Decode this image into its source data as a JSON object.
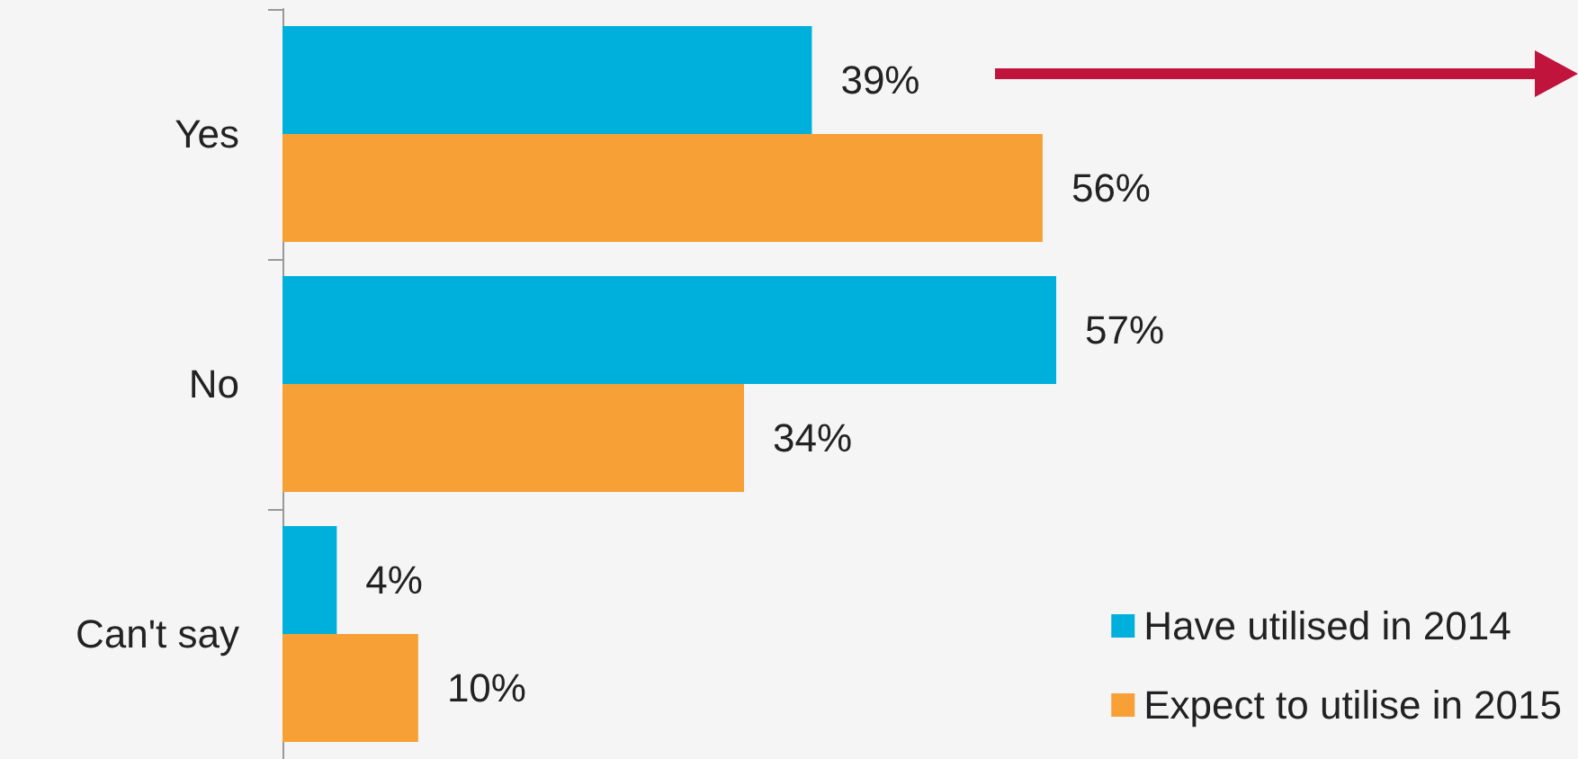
{
  "chart_data": {
    "type": "bar",
    "orientation": "horizontal",
    "categories": [
      "Yes",
      "No",
      "Can't say"
    ],
    "series": [
      {
        "name": "Have utilised in 2014",
        "color": "#00b0dc",
        "values": [
          39,
          57,
          4
        ],
        "value_labels": [
          "39%",
          "57%",
          "4%"
        ]
      },
      {
        "name": "Expect to utilise in 2015",
        "color": "#f7a035",
        "values": [
          56,
          34,
          10
        ],
        "value_labels": [
          "56%",
          "34%",
          "10%"
        ]
      }
    ],
    "legend": "bottom right"
  }
}
